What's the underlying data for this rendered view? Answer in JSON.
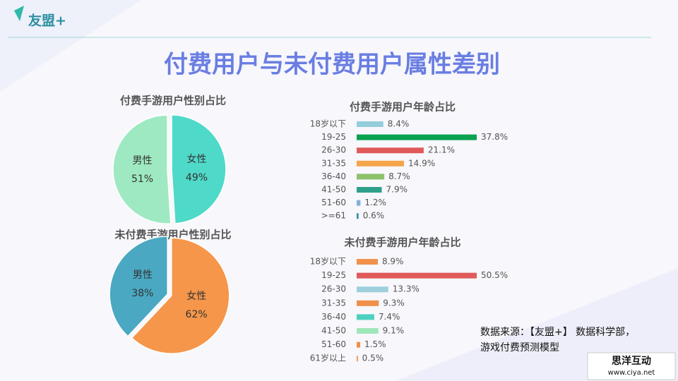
{
  "header": {
    "logo": "友盟+",
    "title": "付费用户与未付费用户属性差别"
  },
  "chart_data": [
    {
      "type": "pie",
      "title": "付费手游用户性别占比",
      "categories": [
        "女性",
        "男性"
      ],
      "values": [
        49,
        51
      ],
      "value_labels": [
        "49%",
        "51%"
      ],
      "colors": [
        "#4fd9c9",
        "#9ee9c1"
      ]
    },
    {
      "type": "pie",
      "title": "未付费手游用户性别占比",
      "categories": [
        "女性",
        "男性"
      ],
      "values": [
        62,
        38
      ],
      "value_labels": [
        "62%",
        "38%"
      ],
      "colors": [
        "#f5964a",
        "#4aa8c2"
      ]
    },
    {
      "type": "bar",
      "title": "付费手游用户年龄占比",
      "categories": [
        "18岁以下",
        "19-25",
        "26-30",
        "31-35",
        "36-40",
        "41-50",
        "51-60",
        ">=61"
      ],
      "values": [
        8.4,
        37.8,
        21.1,
        14.9,
        8.7,
        7.9,
        1.2,
        0.6
      ],
      "value_labels": [
        "8.4%",
        "37.8%",
        "21.1%",
        "14.9%",
        "8.7%",
        "7.9%",
        "1.2%",
        "0.6%"
      ],
      "colors": [
        "#93cddc",
        "#0aa250",
        "#e05a5a",
        "#f5a54a",
        "#8dc26a",
        "#2ea08a",
        "#7fb2d8",
        "#3a8fa0"
      ]
    },
    {
      "type": "bar",
      "title": "未付费手游用户年龄占比",
      "categories": [
        "18岁以下",
        "19-25",
        "26-30",
        "31-35",
        "36-40",
        "41-50",
        "51-60",
        "61岁以上"
      ],
      "values": [
        8.9,
        50.5,
        13.3,
        9.3,
        7.4,
        9.1,
        1.5,
        0.5
      ],
      "value_labels": [
        "8.9%",
        "50.5%",
        "13.3%",
        "9.3%",
        "7.4%",
        "9.1%",
        "1.5%",
        "0.5%"
      ],
      "colors": [
        "#f0904a",
        "#e05a5a",
        "#9dd0dc",
        "#f0904a",
        "#4dd0c0",
        "#9ee6b8",
        "#f0904a",
        "#f0904a"
      ]
    }
  ],
  "source": [
    "数据来源：【友盟+】 数据科学部，",
    "游戏付费预测模型"
  ],
  "watermark": {
    "name": "思洋互动",
    "url": "www.ciya.net"
  }
}
